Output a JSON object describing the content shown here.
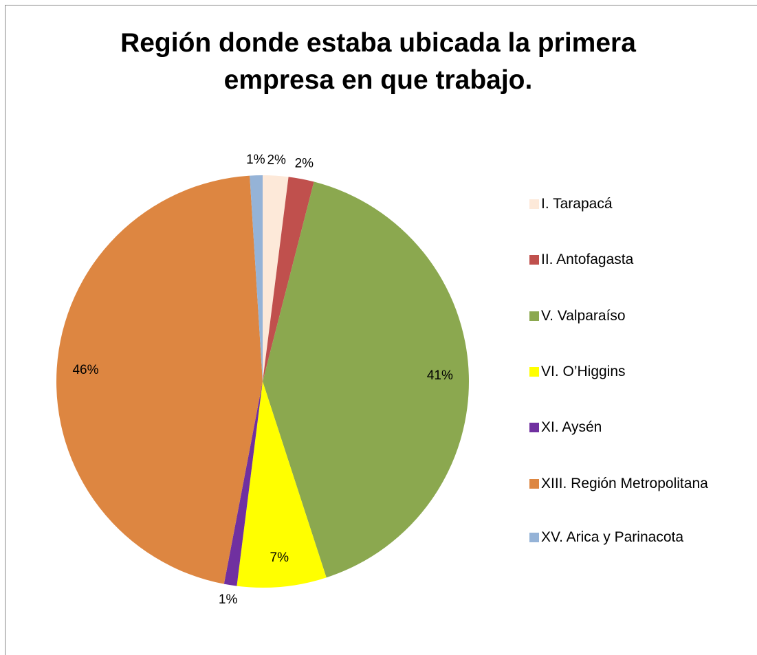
{
  "chart_data": {
    "type": "pie",
    "title": "Región donde estaba ubicada la primera empresa en que trabajo.",
    "categories": [
      "I. Tarapacá",
      "II. Antofagasta",
      "V. Valparaíso",
      "VI. O’Higgins",
      "XI. Aysén",
      "XIII. Región Metropolitana",
      "XV. Arica y Parinacota"
    ],
    "values": [
      2,
      2,
      41,
      7,
      1,
      46,
      1
    ],
    "value_labels": [
      "2%",
      "2%",
      "41%",
      "7%",
      "1%",
      "46%",
      "1%"
    ],
    "colors": [
      "#fde9d9",
      "#c0504d",
      "#8ba84f",
      "#ffff00",
      "#7030a0",
      "#dd8641",
      "#95b3d7"
    ],
    "legend": "right"
  }
}
